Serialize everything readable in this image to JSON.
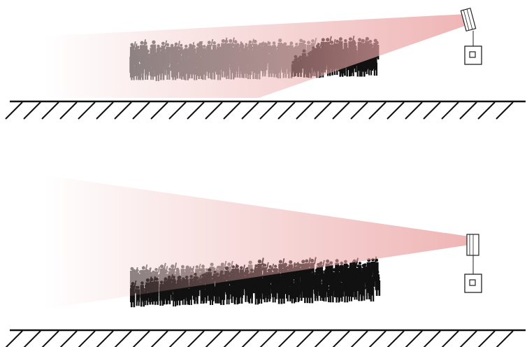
{
  "diagram": {
    "panels": [
      {
        "id": "top",
        "speaker_mount": "angled-high",
        "coverage": "partial-crowd",
        "crowd_shading": "lit-left-dark-right"
      },
      {
        "id": "bottom",
        "speaker_mount": "level",
        "coverage": "full-crowd",
        "crowd_shading": "lit-top-dark-bottom"
      }
    ],
    "colors": {
      "beam": "#eca8a8",
      "crowd_lit": "#7a7a7a",
      "crowd_dark": "#111111",
      "ground": "#111111",
      "device": "#222222"
    },
    "icons": [
      "speaker-icon",
      "amplifier-icon",
      "crowd-icon",
      "ground-hatch-icon"
    ]
  }
}
